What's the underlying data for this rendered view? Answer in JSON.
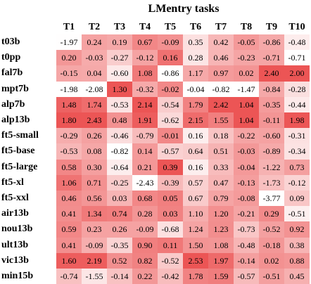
{
  "chart_data": {
    "type": "heatmap",
    "title": "LMentry tasks",
    "columns": [
      "T1",
      "T2",
      "T3",
      "T4",
      "T5",
      "T6",
      "T7",
      "T8",
      "T9",
      "T10"
    ],
    "rows": [
      "t03b",
      "t0pp",
      "fal7b",
      "mpt7b",
      "alp7b",
      "alp13b",
      "ft5-small",
      "ft5-base",
      "ft5-large",
      "ft5-xl",
      "ft5-xxl",
      "air13b",
      "nou13b",
      "ult13b",
      "vic13b",
      "min15b"
    ],
    "values": [
      [
        "-1.97",
        "0.24",
        "0.19",
        "0.67",
        "-0.09",
        "0.35",
        "0.42",
        "-0.05",
        "-0.86",
        "-0.48"
      ],
      [
        "0.20",
        "-0.03",
        "-0.27",
        "-0.12",
        "0.16",
        "0.28",
        "0.46",
        "-0.23",
        "-0.71",
        "-0.71"
      ],
      [
        "-0.15",
        "0.04",
        "-0.60",
        "1.08",
        "-0.86",
        "1.17",
        "0.97",
        "0.02",
        "2.40",
        "2.00"
      ],
      [
        "-1.98",
        "-2.08",
        "1.30",
        "-0.32",
        "-0.02",
        "-0.04",
        "-0.82",
        "-1.47",
        "-0.84",
        "-0.28"
      ],
      [
        "1.48",
        "1.74",
        "-0.53",
        "2.14",
        "-0.54",
        "1.79",
        "2.42",
        "1.04",
        "-0.35",
        "-0.44"
      ],
      [
        "1.80",
        "2.43",
        "0.48",
        "1.91",
        "-0.62",
        "2.15",
        "1.55",
        "1.04",
        "-0.11",
        "1.98"
      ],
      [
        "-0.29",
        "0.26",
        "-0.46",
        "-0.79",
        "-0.01",
        "0.16",
        "0.18",
        "-0.22",
        "-0.60",
        "-0.31"
      ],
      [
        "-0.53",
        "0.08",
        "-0.82",
        "0.14",
        "-0.57",
        "0.64",
        "0.51",
        "-0.03",
        "-0.89",
        "-0.34"
      ],
      [
        "0.58",
        "0.30",
        "-0.64",
        "0.21",
        "0.39",
        "0.16",
        "0.33",
        "-0.04",
        "-1.22",
        "0.73"
      ],
      [
        "1.06",
        "0.71",
        "-0.25",
        "-2.43",
        "-0.39",
        "0.57",
        "0.47",
        "-0.13",
        "-1.73",
        "-0.12"
      ],
      [
        "0.46",
        "0.56",
        "0.03",
        "0.68",
        "0.05",
        "0.67",
        "0.79",
        "-0.08",
        "-3.77",
        "0.09"
      ],
      [
        "0.41",
        "1.34",
        "0.74",
        "0.28",
        "0.03",
        "1.10",
        "1.20",
        "-0.21",
        "0.29",
        "-0.51"
      ],
      [
        "0.59",
        "0.23",
        "0.26",
        "-0.09",
        "-0.68",
        "1.24",
        "1.23",
        "-0.73",
        "-0.52",
        "0.92"
      ],
      [
        "0.41",
        "-0.09",
        "-0.35",
        "0.90",
        "0.11",
        "1.50",
        "1.08",
        "-0.48",
        "-0.18",
        "0.38"
      ],
      [
        "1.60",
        "2.19",
        "0.52",
        "0.82",
        "-0.52",
        "2.53",
        "1.97",
        "-0.14",
        "0.02",
        "0.88"
      ],
      [
        "-0.74",
        "-1.55",
        "-0.14",
        "0.22",
        "-0.42",
        "1.78",
        "1.59",
        "-0.57",
        "-0.51",
        "0.45"
      ]
    ],
    "color_scale": {
      "low": "#ffffff",
      "high": "#ec5555"
    },
    "legend": "none",
    "grid": false
  }
}
